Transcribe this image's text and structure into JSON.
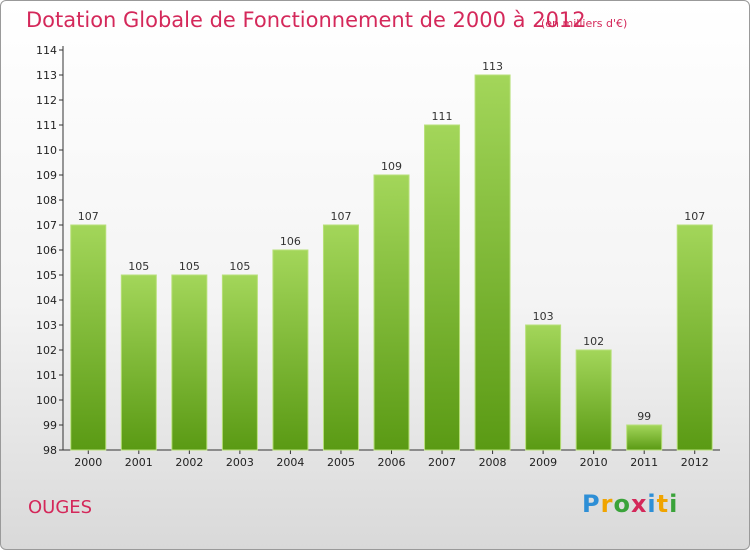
{
  "title": "Dotation Globale de Fonctionnement de 2000 à 2012",
  "subtitle": "(en milliers d'€)",
  "commune": "OUGES",
  "logo": {
    "letters": [
      "P",
      "r",
      "o",
      "x",
      "i",
      "t",
      "i"
    ],
    "colors": [
      "#2e8fd6",
      "#f0a400",
      "#3aa33a",
      "#d4285a",
      "#2e8fd6",
      "#f0a400",
      "#3aa33a"
    ]
  },
  "chart_data": {
    "type": "bar",
    "title": "Dotation Globale de Fonctionnement de 2000 à 2012",
    "subtitle": "(en milliers d'€)",
    "categories": [
      "2000",
      "2001",
      "2002",
      "2003",
      "2004",
      "2005",
      "2006",
      "2007",
      "2008",
      "2009",
      "2010",
      "2011",
      "2012"
    ],
    "values": [
      107,
      105,
      105,
      105,
      106,
      107,
      109,
      111,
      113,
      103,
      102,
      99,
      107
    ],
    "ylim": [
      98,
      114
    ],
    "yticks": [
      98,
      99,
      100,
      101,
      102,
      103,
      104,
      105,
      106,
      107,
      108,
      109,
      110,
      111,
      112,
      113,
      114
    ],
    "grid": false,
    "bar_color": "#8cc63f",
    "xlabel": "",
    "ylabel": ""
  }
}
